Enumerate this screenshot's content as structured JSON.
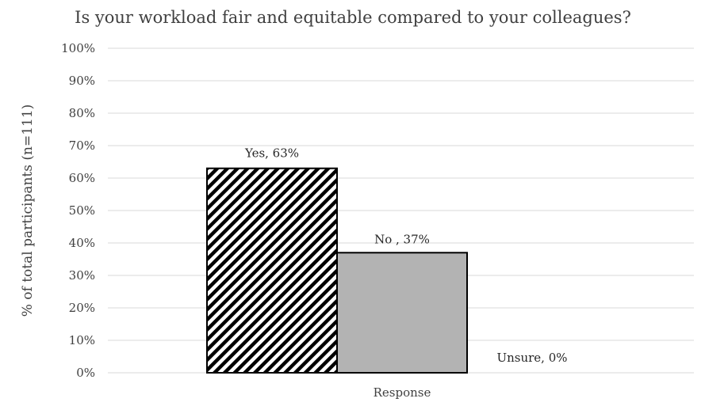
{
  "chart_data": {
    "type": "bar",
    "title": "Is your workload fair and equitable compared to your colleagues?",
    "xlabel": "Response",
    "ylabel": "% of total participants (n=111)",
    "ylim": [
      0,
      100
    ],
    "y_ticks": [
      "0%",
      "10%",
      "20%",
      "30%",
      "40%",
      "50%",
      "60%",
      "70%",
      "80%",
      "90%",
      "100%"
    ],
    "grid": true,
    "legend": "none",
    "series": [
      {
        "category": "Yes",
        "value": 63,
        "label": "Yes, 63%",
        "fill": "hatch",
        "color": "#000000"
      },
      {
        "category": "No",
        "value": 37,
        "label": "No , 37%",
        "fill": "solid",
        "color": "#b3b3b3"
      },
      {
        "category": "Unsure",
        "value": 0,
        "label": "Unsure, 0%",
        "fill": "solid",
        "color": "#ffffff"
      }
    ]
  }
}
